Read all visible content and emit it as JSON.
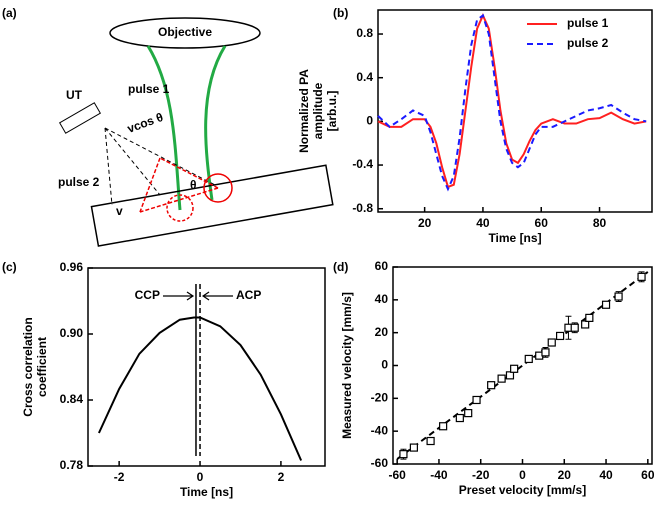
{
  "panels": [
    "(a)",
    "(b)",
    "(c)",
    "(d)"
  ],
  "diagram": {
    "objective": "Objective",
    "transducer": "UT",
    "pulse1": "pulse 1",
    "pulse2": "pulse 2",
    "projection": "vcos θ",
    "angle": "θ",
    "velocity": "v"
  },
  "chart_data": [
    {
      "type": "line",
      "y_label": [
        "Normalized PA",
        "amplitude",
        "[arb.u.]"
      ],
      "x_label": "Time [ns]",
      "legend": "upper right",
      "xlim": [
        4,
        98
      ],
      "ylim": [
        -0.83,
        1.02
      ],
      "xticks": [
        20,
        40,
        60,
        80
      ],
      "yticks": [
        0.8,
        0.4,
        0,
        -0.4,
        -0.8
      ],
      "x": [
        4,
        8,
        12,
        16,
        20,
        22,
        24,
        26,
        28,
        30,
        32,
        34,
        36,
        38,
        40,
        42,
        44,
        46,
        48,
        50,
        52,
        54,
        56,
        58,
        60,
        64,
        68,
        72,
        76,
        80,
        84,
        88,
        92,
        96
      ],
      "series": [
        {
          "name": "pulse 1",
          "color": "#ff2020",
          "dash": false,
          "values": [
            0,
            -0.05,
            -0.05,
            0.02,
            0.02,
            -0.05,
            -0.2,
            -0.42,
            -0.6,
            -0.58,
            -0.3,
            0.1,
            0.5,
            0.85,
            0.97,
            0.85,
            0.5,
            0.1,
            -0.2,
            -0.35,
            -0.38,
            -0.3,
            -0.18,
            -0.08,
            -0.02,
            0.02,
            -0.02,
            -0.02,
            0.02,
            0.03,
            0.08,
            0.02,
            -0.02,
            0
          ]
        },
        {
          "name": "pulse 2",
          "color": "#1a1aff",
          "dash": true,
          "values": [
            0.05,
            -0.05,
            0.02,
            0.1,
            0.05,
            -0.1,
            -0.3,
            -0.5,
            -0.62,
            -0.5,
            -0.15,
            0.3,
            0.7,
            0.93,
            0.97,
            0.8,
            0.4,
            0.0,
            -0.25,
            -0.38,
            -0.42,
            -0.38,
            -0.25,
            -0.12,
            -0.05,
            -0.05,
            0.0,
            0.05,
            0.1,
            0.12,
            0.15,
            0.08,
            0.02,
            0.0
          ]
        }
      ]
    },
    {
      "type": "line",
      "y_label": [
        "Cross correlation",
        "coefficient"
      ],
      "x_label": "Time [ns]",
      "xlim": [
        -2.77,
        3.09
      ],
      "ylim": [
        0.78,
        0.96
      ],
      "xticks": [
        -2,
        0,
        2
      ],
      "yticks": [
        0.96,
        {
          "value": 0.9,
          "label": "0.90"
        },
        0.84,
        0.78
      ],
      "x": [
        -2.5,
        -2,
        -1.5,
        -1,
        -0.5,
        -0.15,
        0,
        0.5,
        1,
        1.5,
        2,
        2.5
      ],
      "series": [
        {
          "color": "#000000",
          "dash": false,
          "values": [
            0.81,
            0.85,
            0.882,
            0.901,
            0.913,
            0.915,
            0.915,
            0.907,
            0.89,
            0.863,
            0.827,
            0.785
          ]
        }
      ],
      "markers": [
        {
          "label": "CCP",
          "x": -0.1,
          "dash": false
        },
        {
          "label": "ACP",
          "x": 0,
          "dash": true
        }
      ]
    },
    {
      "type": "scatter",
      "y_label": [
        "Measured velocity [mm/s]"
      ],
      "x_label": "Preset velocity [mm/s]",
      "xlim": [
        -62,
        62
      ],
      "ylim": [
        -60,
        60
      ],
      "xticks": [
        -60,
        -40,
        -20,
        0,
        20,
        40,
        60
      ],
      "yticks": [
        -60,
        -40,
        -20,
        0,
        20,
        40,
        60
      ],
      "x": [
        -57,
        -52,
        -44,
        -38,
        -30,
        -26,
        -22,
        -15,
        -10,
        -6,
        -4,
        3,
        8,
        11,
        14,
        18,
        22,
        25,
        30,
        32,
        40,
        46,
        57
      ],
      "values": [
        -54,
        -50,
        -46,
        -37,
        -32,
        -29,
        -21,
        -12,
        -8,
        -6,
        -2,
        4,
        6,
        8,
        14,
        18,
        23,
        23,
        25,
        29,
        37,
        42,
        54
      ],
      "errors": [
        3,
        2,
        2,
        2,
        2,
        2,
        2,
        2,
        2,
        2,
        2,
        2,
        2,
        3,
        2,
        2,
        7,
        3,
        2,
        2,
        2,
        3,
        3
      ],
      "fit_line": {
        "x": [
          -60,
          60
        ],
        "values": [
          -57,
          57
        ]
      }
    }
  ]
}
